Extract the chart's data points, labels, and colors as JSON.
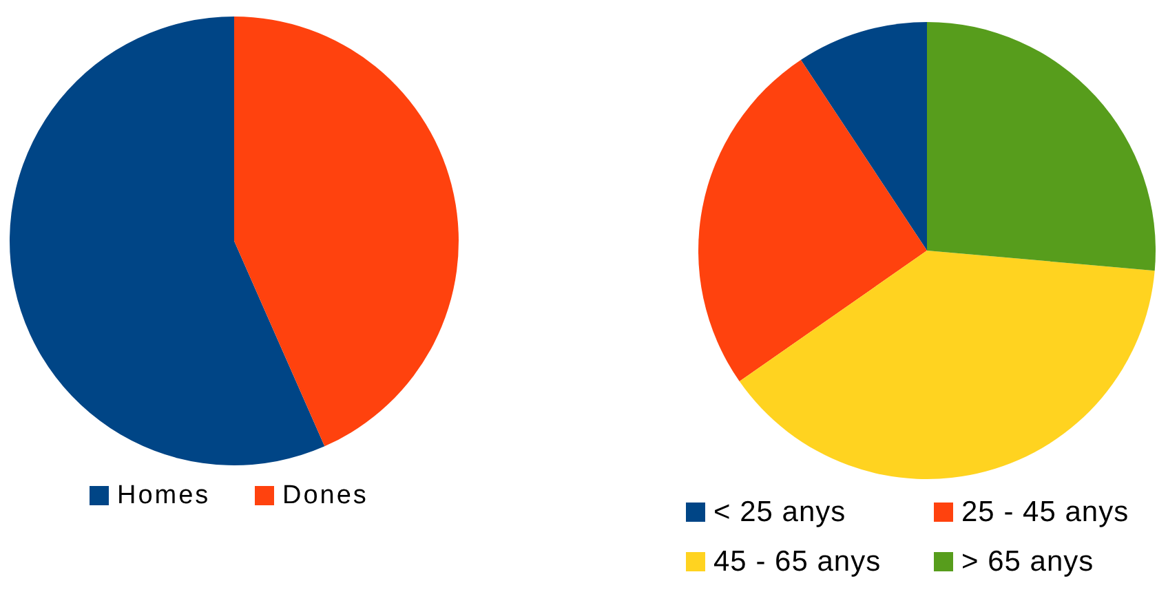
{
  "chart_data": [
    {
      "type": "pie",
      "categories": [
        "Homes",
        "Dones"
      ],
      "values": [
        56.6,
        43.4
      ],
      "colors": [
        "#004586",
        "#ff420e"
      ],
      "legend": "bottom"
    },
    {
      "type": "pie",
      "categories": [
        "< 25 anys",
        "25 - 45 anys",
        "45 - 65 anys",
        "> 65 anys"
      ],
      "values": [
        9.3,
        25.4,
        38.9,
        26.4
      ],
      "colors": [
        "#004586",
        "#ff420e",
        "#ffd320",
        "#579d1c"
      ],
      "legend": "bottom"
    }
  ]
}
